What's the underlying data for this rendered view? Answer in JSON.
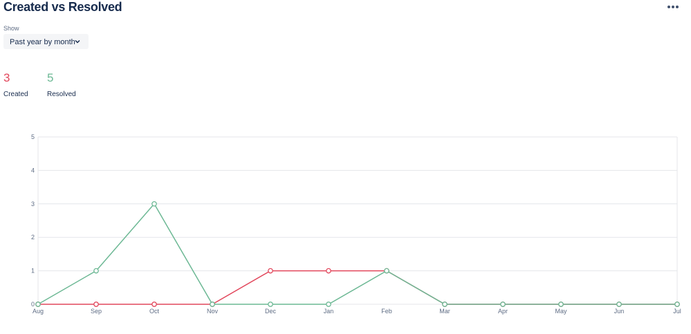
{
  "header": {
    "title": "Created vs Resolved"
  },
  "filter": {
    "label": "Show",
    "selected": "Past year by month"
  },
  "totals": [
    3,
    5
  ],
  "chart_data": {
    "type": "line",
    "categories": [
      "Aug",
      "Sep",
      "Oct",
      "Nov",
      "Dec",
      "Jan",
      "Feb",
      "Mar",
      "Apr",
      "May",
      "Jun",
      "Jul"
    ],
    "series": [
      {
        "name": "Created",
        "color": "#e2475c",
        "values": [
          0,
          0,
          0,
          0,
          1,
          1,
          1,
          0,
          0,
          0,
          0,
          0
        ]
      },
      {
        "name": "Resolved",
        "color": "#6cb894",
        "values": [
          0,
          1,
          3,
          0,
          0,
          0,
          1,
          0,
          0,
          0,
          0,
          0
        ]
      }
    ],
    "ylim": [
      0,
      5
    ],
    "yticks": [
      0,
      1,
      2,
      3,
      4,
      5
    ],
    "grid": true
  }
}
